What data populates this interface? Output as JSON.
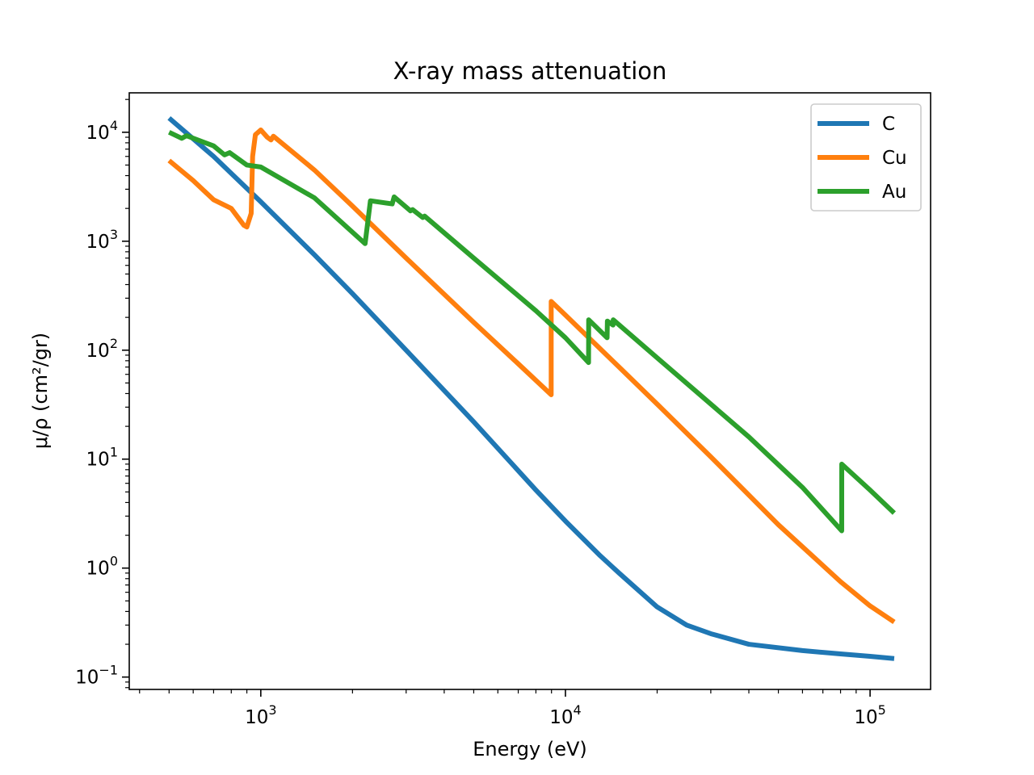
{
  "chart_data": {
    "type": "line",
    "title": "X-ray mass attenuation",
    "xlabel": "Energy (eV)",
    "ylabel": "μ/ρ (cm²/gr)",
    "xscale": "log",
    "yscale": "log",
    "xlim": [
      370,
      158000
    ],
    "ylim": [
      0.077,
      23000
    ],
    "x_ticks": [
      {
        "value": 1000,
        "base": "10",
        "exp": "3"
      },
      {
        "value": 10000,
        "base": "10",
        "exp": "4"
      },
      {
        "value": 100000,
        "base": "10",
        "exp": "5"
      }
    ],
    "y_ticks": [
      {
        "value": 0.1,
        "base": "10",
        "exp": "−1"
      },
      {
        "value": 1,
        "base": "10",
        "exp": "0"
      },
      {
        "value": 10,
        "base": "10",
        "exp": "1"
      },
      {
        "value": 100,
        "base": "10",
        "exp": "2"
      },
      {
        "value": 1000,
        "base": "10",
        "exp": "3"
      },
      {
        "value": 10000,
        "base": "10",
        "exp": "4"
      }
    ],
    "grid": false,
    "legend_position": "top-right",
    "series": [
      {
        "name": "C",
        "color": "#1f77b4",
        "points": [
          [
            500,
            13500
          ],
          [
            700,
            6000
          ],
          [
            1000,
            2300
          ],
          [
            1500,
            750
          ],
          [
            2000,
            330
          ],
          [
            3000,
            100
          ],
          [
            5000,
            22
          ],
          [
            8000,
            5.2
          ],
          [
            10000,
            2.7
          ],
          [
            13000,
            1.3
          ],
          [
            15000,
            0.9
          ],
          [
            20000,
            0.44
          ],
          [
            25000,
            0.3
          ],
          [
            30000,
            0.25
          ],
          [
            40000,
            0.2
          ],
          [
            60000,
            0.175
          ],
          [
            80000,
            0.163
          ],
          [
            100000,
            0.155
          ],
          [
            120000,
            0.148
          ]
        ]
      },
      {
        "name": "Cu",
        "color": "#ff7f0e",
        "points": [
          [
            500,
            5500
          ],
          [
            600,
            3600
          ],
          [
            700,
            2400
          ],
          [
            800,
            2000
          ],
          [
            880,
            1400
          ],
          [
            900,
            1350
          ],
          [
            930,
            1800
          ],
          [
            940,
            6000
          ],
          [
            960,
            9500
          ],
          [
            1000,
            10500
          ],
          [
            1050,
            9000
          ],
          [
            1080,
            8500
          ],
          [
            1100,
            9200
          ],
          [
            1500,
            4500
          ],
          [
            2000,
            2100
          ],
          [
            3000,
            700
          ],
          [
            5000,
            180
          ],
          [
            7000,
            75
          ],
          [
            8979,
            39
          ],
          [
            8980,
            280
          ],
          [
            10000,
            210
          ],
          [
            15000,
            70
          ],
          [
            20000,
            32
          ],
          [
            30000,
            10.5
          ],
          [
            50000,
            2.5
          ],
          [
            80000,
            0.75
          ],
          [
            100000,
            0.45
          ],
          [
            120000,
            0.32
          ]
        ]
      },
      {
        "name": "Au",
        "color": "#2ca02c",
        "points": [
          [
            500,
            10000
          ],
          [
            550,
            8800
          ],
          [
            570,
            9300
          ],
          [
            700,
            7500
          ],
          [
            760,
            6200
          ],
          [
            790,
            6500
          ],
          [
            900,
            5000
          ],
          [
            1000,
            4800
          ],
          [
            1500,
            2500
          ],
          [
            2200,
            950
          ],
          [
            2290,
            2350
          ],
          [
            2700,
            2200
          ],
          [
            2740,
            2550
          ],
          [
            3100,
            1900
          ],
          [
            3150,
            1950
          ],
          [
            3400,
            1650
          ],
          [
            3450,
            1700
          ],
          [
            5000,
            700
          ],
          [
            8000,
            230
          ],
          [
            10000,
            130
          ],
          [
            11910,
            77
          ],
          [
            11920,
            190
          ],
          [
            13700,
            130
          ],
          [
            13730,
            185
          ],
          [
            14330,
            170
          ],
          [
            14350,
            190
          ],
          [
            20000,
            85
          ],
          [
            40000,
            16
          ],
          [
            60000,
            5.5
          ],
          [
            80710,
            2.2
          ],
          [
            80730,
            9
          ],
          [
            100000,
            5.2
          ],
          [
            120000,
            3.2
          ]
        ]
      }
    ]
  }
}
